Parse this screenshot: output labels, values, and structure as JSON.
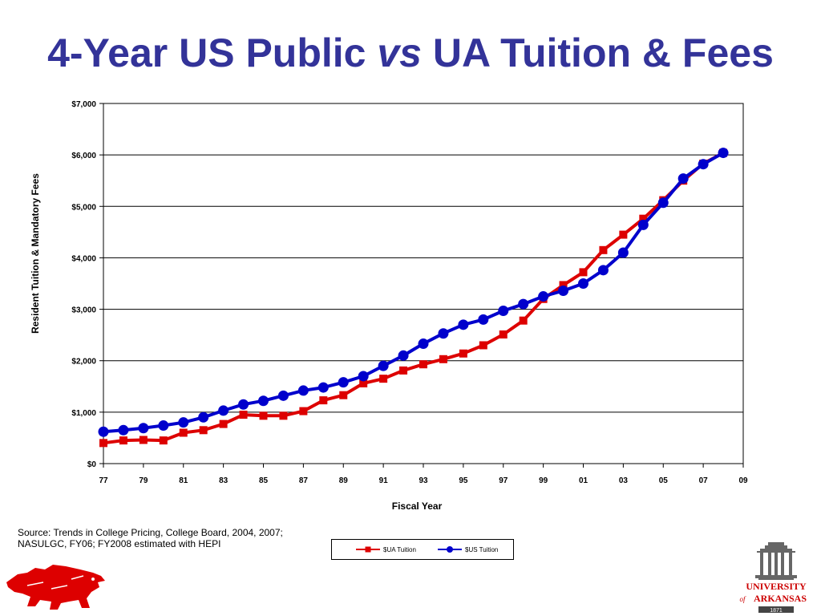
{
  "slide": {
    "title_part1": "4-Year US Public ",
    "title_italic": "vs",
    "title_part2": " UA Tuition & Fees",
    "source_line1": "Source: Trends in College Pricing, College Board, 2004, 2007;",
    "source_line2": "NASULGC, FY06; FY2008 estimated with HEPI",
    "logo_text_1": "UNIVERSITY",
    "logo_text_2": "of",
    "logo_text_3": "ARKANSAS",
    "logo_year": "1871"
  },
  "chart_data": {
    "type": "line",
    "title": "",
    "xlabel": "Fiscal Year",
    "ylabel": "Resident Tuition & Mandatory Fees",
    "xlim": [
      1977,
      2009
    ],
    "ylim": [
      0,
      7000
    ],
    "x_ticks": [
      1977,
      1979,
      1981,
      1983,
      1985,
      1987,
      1989,
      1991,
      1993,
      1995,
      1997,
      1999,
      2001,
      2003,
      2005,
      2007,
      2009
    ],
    "x_tick_labels": [
      "77",
      "79",
      "81",
      "83",
      "85",
      "87",
      "89",
      "91",
      "93",
      "95",
      "97",
      "99",
      "01",
      "03",
      "05",
      "07",
      "09"
    ],
    "y_ticks": [
      0,
      1000,
      2000,
      3000,
      4000,
      5000,
      6000,
      7000
    ],
    "y_tick_labels": [
      "$0",
      "$1,000",
      "$2,000",
      "$3,000",
      "$4,000",
      "$5,000",
      "$6,000",
      "$7,000"
    ],
    "grid": "horizontal",
    "legend_position": "bottom",
    "x": [
      1977,
      1978,
      1979,
      1980,
      1981,
      1982,
      1983,
      1984,
      1985,
      1986,
      1987,
      1988,
      1989,
      1990,
      1991,
      1992,
      1993,
      1994,
      1995,
      1996,
      1997,
      1998,
      1999,
      2000,
      2001,
      2002,
      2003,
      2004,
      2005,
      2006,
      2007,
      2008
    ],
    "series": [
      {
        "name": "$UA Tuition",
        "color": "#dd0000",
        "marker": "square",
        "values": [
          400,
          450,
          460,
          450,
          600,
          650,
          770,
          950,
          930,
          930,
          1020,
          1230,
          1330,
          1560,
          1650,
          1810,
          1930,
          2030,
          2140,
          2300,
          2510,
          2780,
          3200,
          3470,
          3720,
          4150,
          4450,
          4760,
          5120,
          5500,
          5830,
          6040
        ]
      },
      {
        "name": "$US Tuition",
        "color": "#0000cc",
        "marker": "circle",
        "values": [
          620,
          650,
          690,
          740,
          800,
          900,
          1030,
          1150,
          1220,
          1320,
          1420,
          1480,
          1580,
          1700,
          1900,
          2100,
          2330,
          2530,
          2700,
          2800,
          2970,
          3100,
          3250,
          3360,
          3500,
          3760,
          4100,
          4640,
          5070,
          5540,
          5820,
          6040
        ]
      }
    ]
  }
}
